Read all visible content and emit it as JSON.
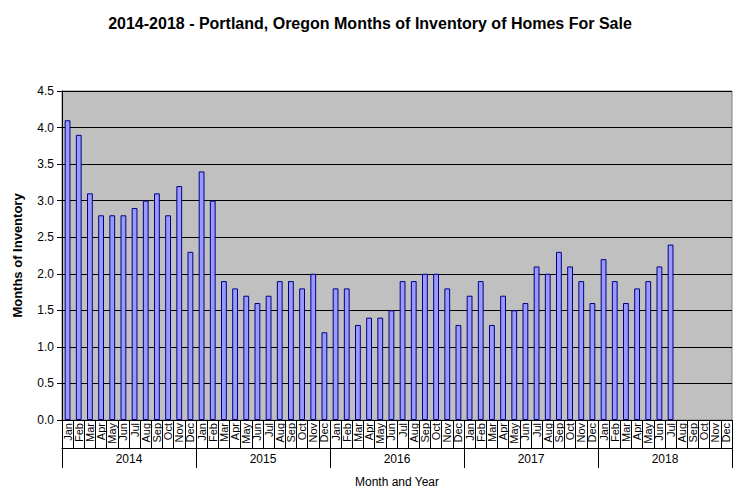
{
  "chart_data": {
    "type": "bar",
    "title": "2014-2018 - Portland, Oregon Months of Inventory of Homes For Sale",
    "x_label": "Month and Year",
    "y_label": "Months of Inventory",
    "categories": [
      "Jan",
      "Feb",
      "Mar",
      "Apr",
      "May",
      "Jun",
      "Jul",
      "Aug",
      "Sep",
      "Oct",
      "Nov",
      "Dec",
      "Jan",
      "Feb",
      "Mar",
      "Apr",
      "May",
      "Jun",
      "Jul",
      "Aug",
      "Sep",
      "Oct",
      "Nov",
      "Dec",
      "Jan",
      "Feb",
      "Mar",
      "Apr",
      "May",
      "Jun",
      "Jul",
      "Aug",
      "Sep",
      "Oct",
      "Nov",
      "Dec",
      "Jan",
      "Feb",
      "Mar",
      "Apr",
      "May",
      "Jun",
      "Jul",
      "Aug",
      "Sep",
      "Oct",
      "Nov",
      "Dec",
      "Jan",
      "Feb",
      "Mar",
      "Apr",
      "May",
      "Jun",
      "Jul",
      "Aug",
      "Sep",
      "Oct",
      "Nov",
      "Dec"
    ],
    "years": [
      "2014",
      "2015",
      "2016",
      "2017",
      "2018"
    ],
    "values": [
      4.1,
      3.9,
      3.1,
      2.8,
      2.8,
      2.8,
      2.9,
      3.0,
      3.1,
      2.8,
      3.2,
      2.3,
      3.4,
      3.0,
      1.9,
      1.8,
      1.7,
      1.6,
      1.7,
      1.9,
      1.9,
      1.8,
      2.0,
      1.2,
      1.8,
      1.8,
      1.3,
      1.4,
      1.4,
      1.5,
      1.9,
      1.9,
      2.0,
      2.0,
      1.8,
      1.3,
      1.7,
      1.9,
      1.3,
      1.7,
      1.5,
      1.6,
      2.1,
      2.0,
      2.3,
      2.1,
      1.9,
      1.6,
      2.2,
      1.9,
      1.6,
      1.8,
      1.9,
      2.1,
      2.4,
      null,
      null,
      null,
      null,
      null
    ],
    "color": "#9999ff",
    "ylim": [
      0,
      4.5
    ],
    "yticks": [
      {
        "value": 0,
        "label": "0.0"
      },
      0.5,
      {
        "value": 1,
        "label": "1.0"
      },
      1.5,
      {
        "value": 2,
        "label": "2.0"
      },
      2.5,
      {
        "value": 3,
        "label": "3.0"
      },
      3.5,
      {
        "value": 4,
        "label": "4.0"
      },
      4.5
    ],
    "grid": true
  }
}
